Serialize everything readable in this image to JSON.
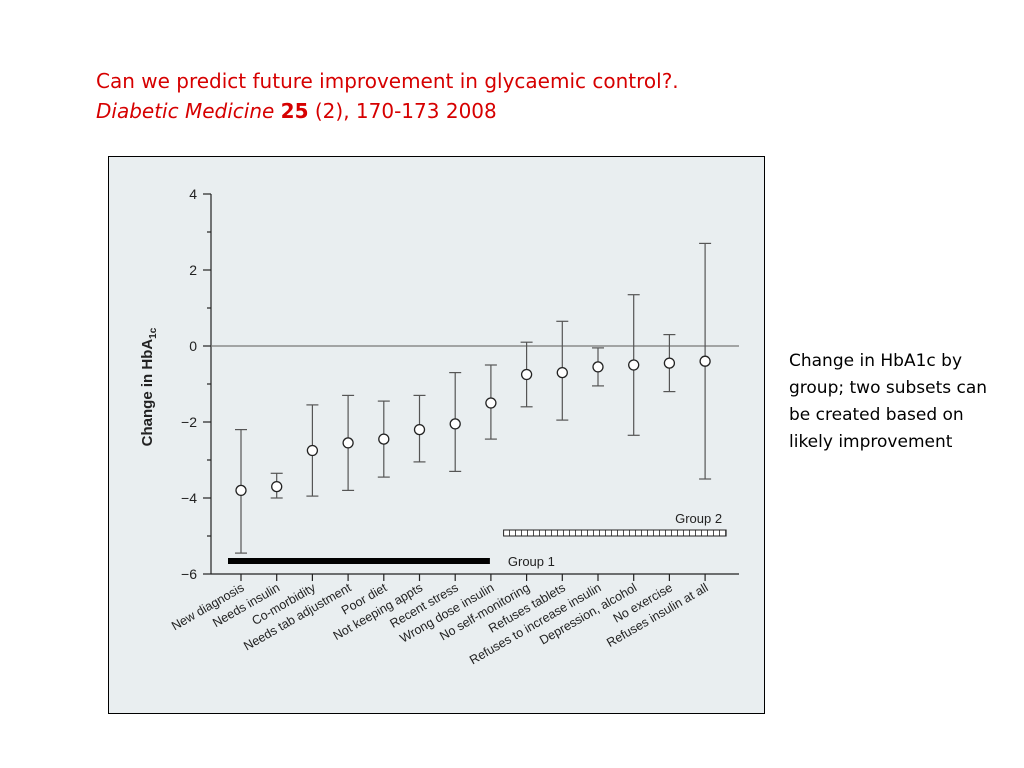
{
  "header": {
    "line1": "Can we predict future improvement in glycaemic control?.",
    "journal": "Diabetic Medicine",
    "volume": "25",
    "issue_pages": "(2), 170-173 2008"
  },
  "side_note": "Change in HbA1c by group; two subsets can be created based on likely improvement",
  "chart_data": {
    "type": "scatter",
    "ylabel": "Change in HbA1c",
    "ylim": [
      -6,
      4
    ],
    "yticks": [
      4,
      2,
      0,
      -2,
      -4,
      -6
    ],
    "reference_line": 0,
    "grid": false,
    "categories": [
      "New diagnosis",
      "Needs insulin",
      "Co-morbidity",
      "Needs tab adjustment",
      "Poor diet",
      "Not keeping appts",
      "Recent stress",
      "Wrong dose insulin",
      "No self-monitoring",
      "Refuses tablets",
      "Refuses to increase insulin",
      "Depression, alcohol",
      "No exercise",
      "Refuses insulin at all"
    ],
    "series": [
      {
        "mean": [
          -3.8,
          -3.7,
          -2.75,
          -2.55,
          -2.45,
          -2.2,
          -2.05,
          -1.5,
          -0.75,
          -0.7,
          -0.55,
          -0.5,
          -0.45,
          -0.4
        ],
        "lower": [
          -5.45,
          -4.0,
          -3.95,
          -3.8,
          -3.45,
          -3.05,
          -3.3,
          -2.45,
          -1.6,
          -1.95,
          -1.05,
          -2.35,
          -1.2,
          -3.5
        ],
        "upper": [
          -2.2,
          -3.35,
          -1.55,
          -1.3,
          -1.45,
          -1.3,
          -0.7,
          -0.5,
          0.1,
          0.65,
          -0.05,
          1.35,
          0.3,
          2.7
        ]
      }
    ],
    "groups": [
      {
        "name": "Group 1",
        "from": "New diagnosis",
        "to": "Wrong dose insulin",
        "style": "solid"
      },
      {
        "name": "Group 2",
        "from": "No self-monitoring",
        "to": "Refuses insulin at all",
        "style": "hatched"
      }
    ],
    "colors": {
      "background": "#e9eef0",
      "ink": "#222222",
      "bar": "#000000",
      "title": "#d60000"
    }
  }
}
